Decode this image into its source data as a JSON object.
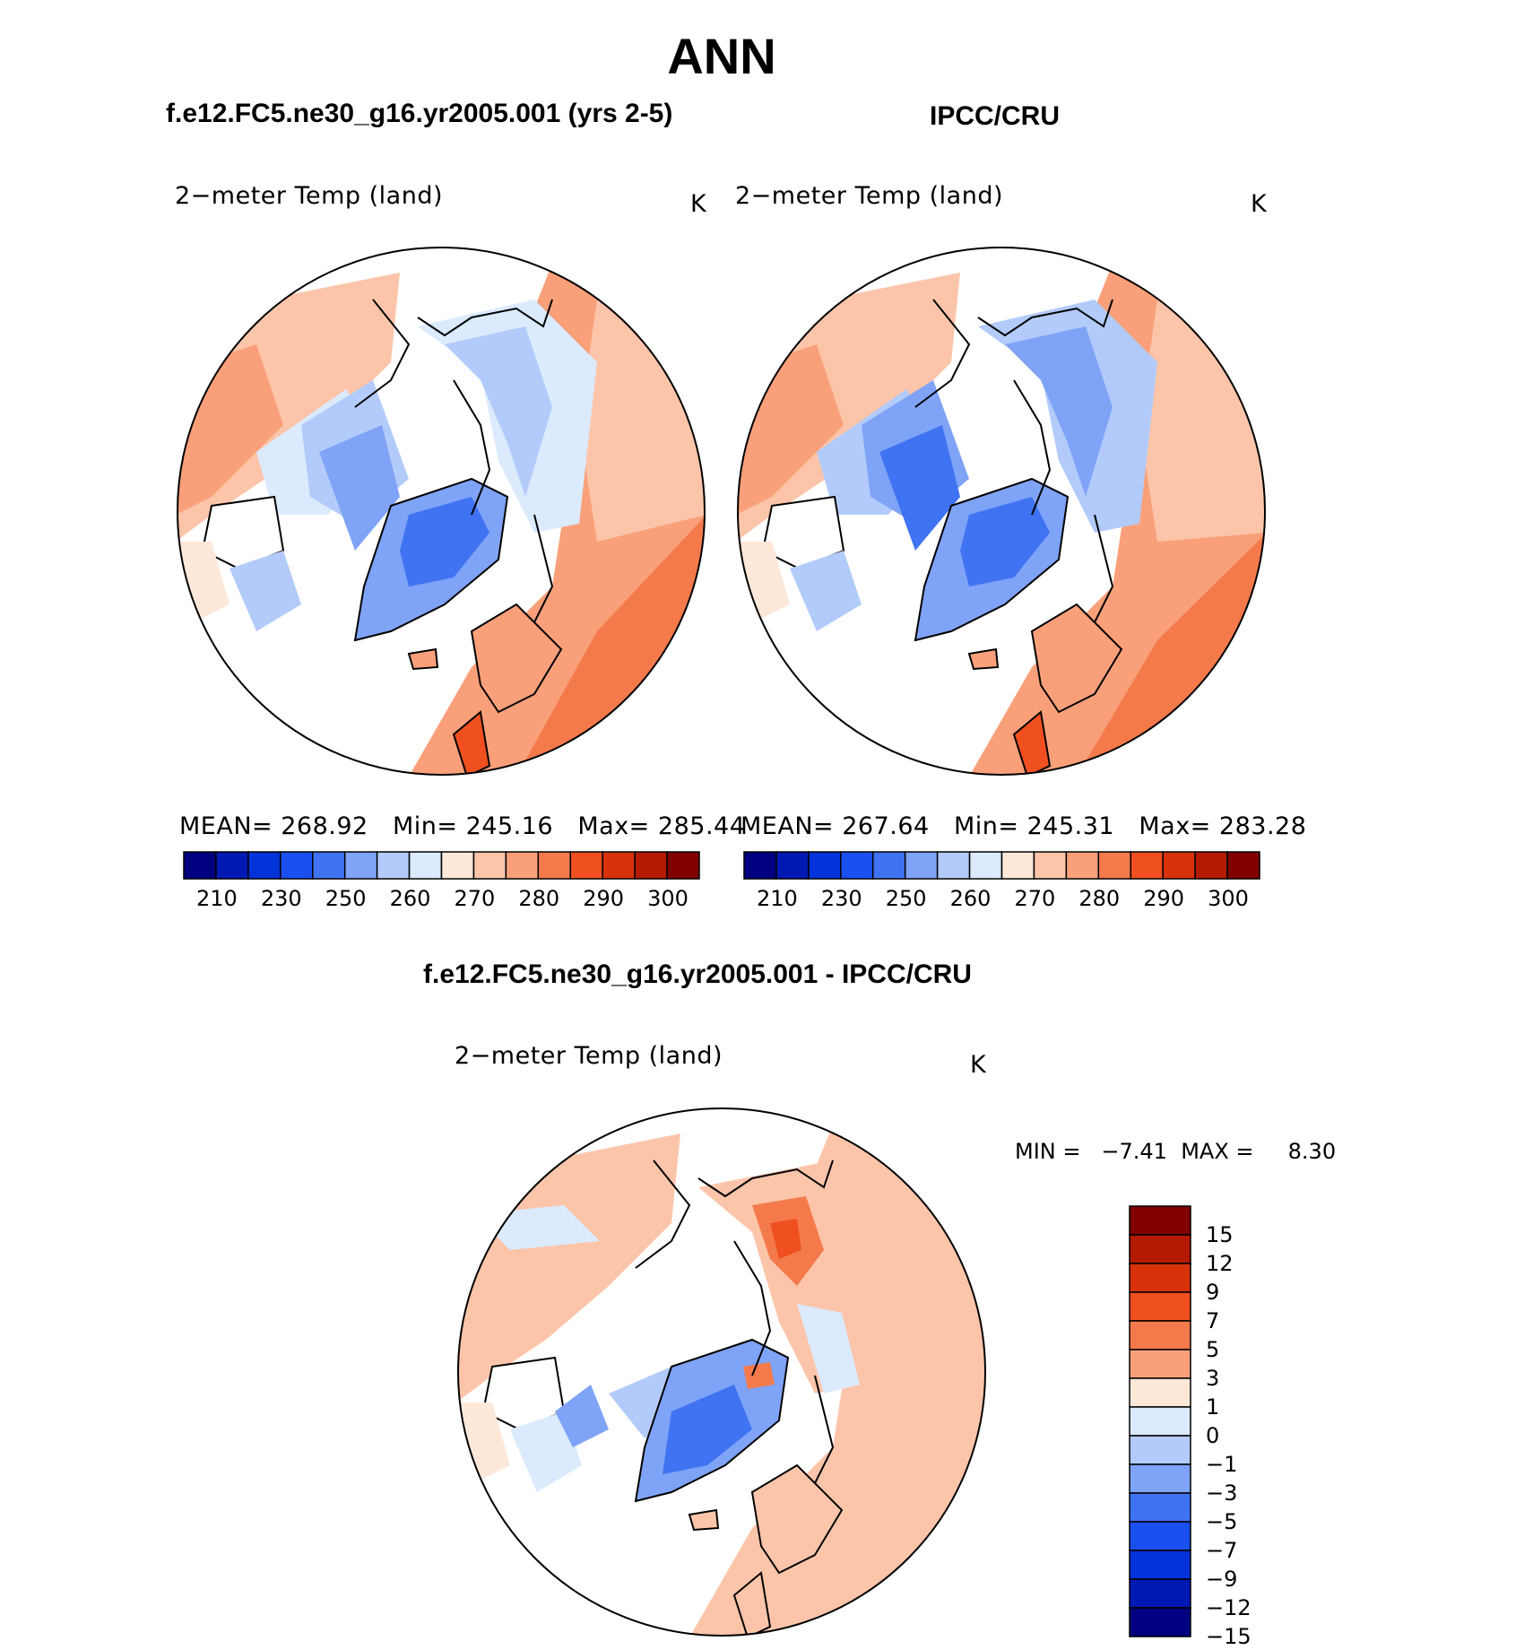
{
  "main_title": "ANN",
  "panels": [
    {
      "id": "model",
      "case_title": "f.e12.FC5.ne30_g16.yr2005.001 (yrs 2-5)",
      "variable": "2−meter Temp (land)",
      "units": "K",
      "stats": {
        "mean_label": "MEAN=",
        "mean": "268.92",
        "min_label": "Min=",
        "min": "245.16",
        "max_label": "Max=",
        "max": "285.44"
      }
    },
    {
      "id": "obs",
      "case_title": "IPCC/CRU",
      "variable": "2−meter Temp (land)",
      "units": "K",
      "stats": {
        "mean_label": "MEAN=",
        "mean": "267.64",
        "min_label": "Min=",
        "min": "245.31",
        "max_label": "Max=",
        "max": "283.28"
      }
    }
  ],
  "abs_colorbar": {
    "colors": [
      "#000080",
      "#0019b3",
      "#0033d9",
      "#1a4ff0",
      "#3f73f2",
      "#7fa3f7",
      "#b3cbfa",
      "#dbeafd",
      "#fde8da",
      "#fcc5aa",
      "#f9a07a",
      "#f47a4b",
      "#f0501f",
      "#d8320b",
      "#b31a00",
      "#800000"
    ],
    "tick_labels": [
      "210",
      "230",
      "250",
      "260",
      "270",
      "280",
      "290",
      "300"
    ]
  },
  "diff_panel": {
    "title": "f.e12.FC5.ne30_g16.yr2005.001 - IPCC/CRU",
    "variable": "2−meter Temp (land)",
    "units": "K",
    "min_label": "MIN =",
    "min": "−7.41",
    "max_label": "MAX =",
    "max": "8.30"
  },
  "diff_colorbar": {
    "colors": [
      "#800000",
      "#b31a00",
      "#d8320b",
      "#f0501f",
      "#f47a4b",
      "#f9a07a",
      "#fde8da",
      "#dbeafd",
      "#b3cbfa",
      "#7fa3f7",
      "#3f73f2",
      "#1a4ff0",
      "#0033d9",
      "#0019b3",
      "#000080"
    ],
    "tick_labels": [
      "15",
      "12",
      "9",
      "7",
      "5",
      "3",
      "1",
      "0",
      "−1",
      "−3",
      "−5",
      "−7",
      "−9",
      "−12",
      "−15"
    ]
  },
  "chart_data": [
    {
      "type": "heatmap",
      "projection": "north polar stereographic",
      "title": "f.e12.FC5.ne30_g16.yr2005.001 (yrs 2-5)",
      "variable": "2-meter Temp (land)",
      "units": "K",
      "mean": 268.92,
      "min": 245.16,
      "max": 285.44,
      "levels": [
        210,
        220,
        230,
        240,
        250,
        255,
        260,
        265,
        270,
        275,
        280,
        285,
        290,
        295,
        300
      ]
    },
    {
      "type": "heatmap",
      "projection": "north polar stereographic",
      "title": "IPCC/CRU",
      "variable": "2-meter Temp (land)",
      "units": "K",
      "mean": 267.64,
      "min": 245.31,
      "max": 283.28,
      "levels": [
        210,
        220,
        230,
        240,
        250,
        255,
        260,
        265,
        270,
        275,
        280,
        285,
        290,
        295,
        300
      ]
    },
    {
      "type": "heatmap",
      "projection": "north polar stereographic",
      "title": "f.e12.FC5.ne30_g16.yr2005.001 - IPCC/CRU",
      "variable": "2-meter Temp (land)",
      "units": "K",
      "min": -7.41,
      "max": 8.3,
      "levels": [
        -15,
        -12,
        -9,
        -7,
        -5,
        -3,
        -1,
        0,
        1,
        3,
        5,
        7,
        9,
        12,
        15
      ]
    }
  ]
}
